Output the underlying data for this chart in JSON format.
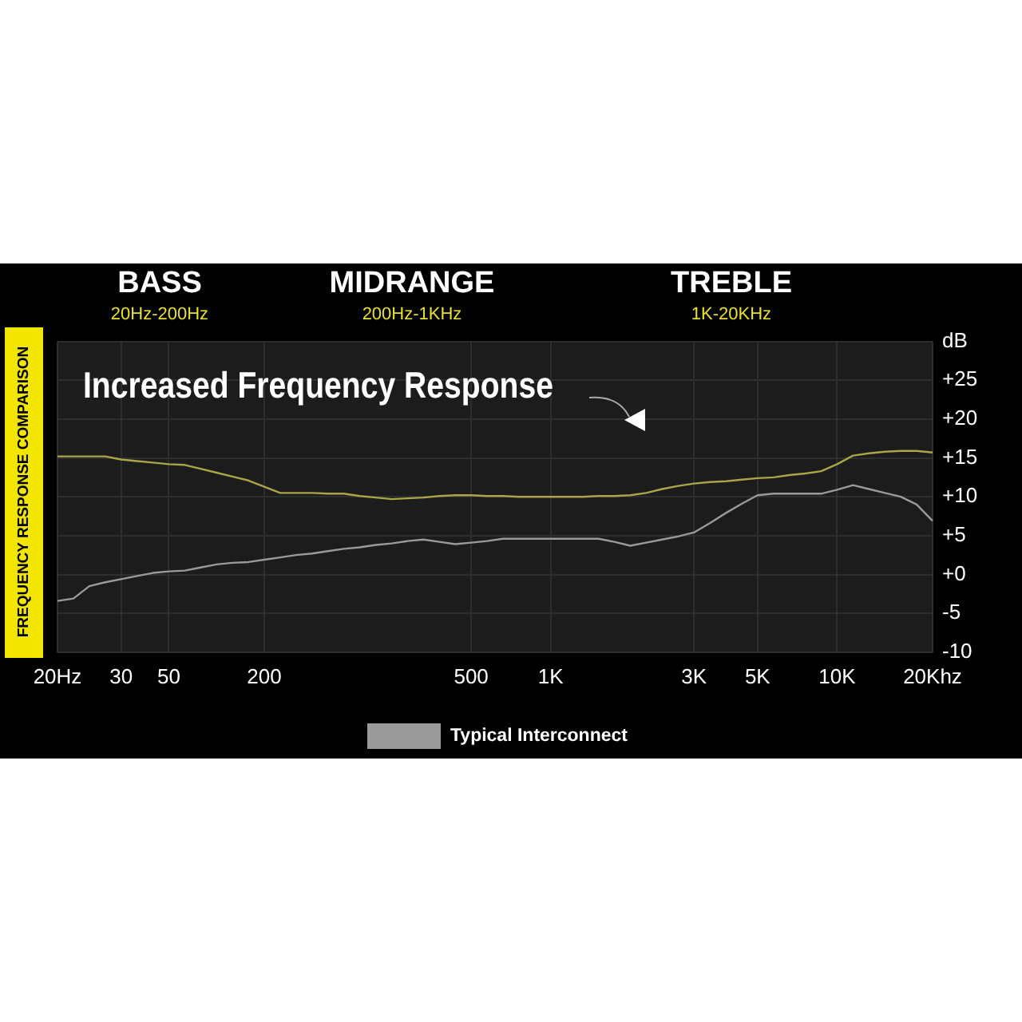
{
  "chart_data": {
    "type": "line",
    "title": "Increased Frequency Response",
    "ylabel": "FREQUENCY RESPONSE COMPARISON",
    "annotations": [
      "BASS",
      "20Hz-200Hz",
      "MIDRANGE",
      "200Hz-1KHz",
      "TREBLE",
      "1K-20KHz"
    ],
    "categories": [
      "20Hz",
      null,
      null,
      null,
      "30",
      null,
      null,
      "50",
      null,
      null,
      null,
      null,
      null,
      "200",
      null,
      null,
      null,
      null,
      null,
      null,
      null,
      null,
      null,
      null,
      null,
      null,
      "500",
      null,
      null,
      null,
      null,
      "1K",
      null,
      null,
      null,
      null,
      null,
      null,
      null,
      null,
      "3K",
      null,
      null,
      null,
      "5K",
      null,
      null,
      null,
      null,
      "10K",
      null,
      null,
      null,
      null,
      null,
      "20Khz"
    ],
    "series": [
      {
        "color": "#aaa548",
        "values": [
          15.2,
          15.2,
          15.2,
          15.2,
          14.8,
          14.6,
          14.4,
          14.2,
          14.1,
          13.6,
          13.1,
          12.6,
          12.1,
          11.3,
          10.5,
          10.5,
          10.5,
          10.4,
          10.4,
          10.1,
          9.9,
          9.7,
          9.8,
          9.9,
          10.1,
          10.2,
          10.2,
          10.1,
          10.1,
          10.0,
          10.0,
          10.0,
          10.0,
          10.0,
          10.1,
          10.1,
          10.2,
          10.5,
          11.0,
          11.4,
          11.7,
          11.9,
          12.0,
          12.2,
          12.4,
          12.5,
          12.8,
          13.0,
          13.3,
          14.2,
          15.3,
          15.6,
          15.8,
          15.9,
          15.9,
          15.7
        ]
      },
      {
        "name": "Typical Interconnect",
        "color": "#9a9a9a",
        "values": [
          -3.4,
          -3.1,
          -1.5,
          -1.0,
          -0.6,
          -0.2,
          0.2,
          0.4,
          0.5,
          0.9,
          1.3,
          1.5,
          1.6,
          1.9,
          2.2,
          2.5,
          2.7,
          3.0,
          3.3,
          3.5,
          3.8,
          4.0,
          4.3,
          4.5,
          4.2,
          3.9,
          4.1,
          4.3,
          4.6,
          4.6,
          4.6,
          4.6,
          4.6,
          4.6,
          4.6,
          4.2,
          3.7,
          4.1,
          4.5,
          4.9,
          5.4,
          6.6,
          7.9,
          9.1,
          10.2,
          10.4,
          10.4,
          10.4,
          10.4,
          10.9,
          11.5,
          11.0,
          10.5,
          10.0,
          9.0,
          6.9
        ]
      }
    ],
    "ylim": [
      -10,
      30
    ],
    "yticks": [
      -10,
      -5,
      {
        "value": 0,
        "label": "+0"
      },
      {
        "value": 5,
        "label": "+5"
      },
      {
        "value": 10,
        "label": "+10"
      },
      {
        "value": 15,
        "label": "+15"
      },
      {
        "value": 20,
        "label": "+20"
      },
      {
        "value": 25,
        "label": "+25"
      },
      {
        "value": 30,
        "label": "dB"
      }
    ],
    "grid": true,
    "legend": "bottom left",
    "marker": "none",
    "line_style": "solid"
  }
}
